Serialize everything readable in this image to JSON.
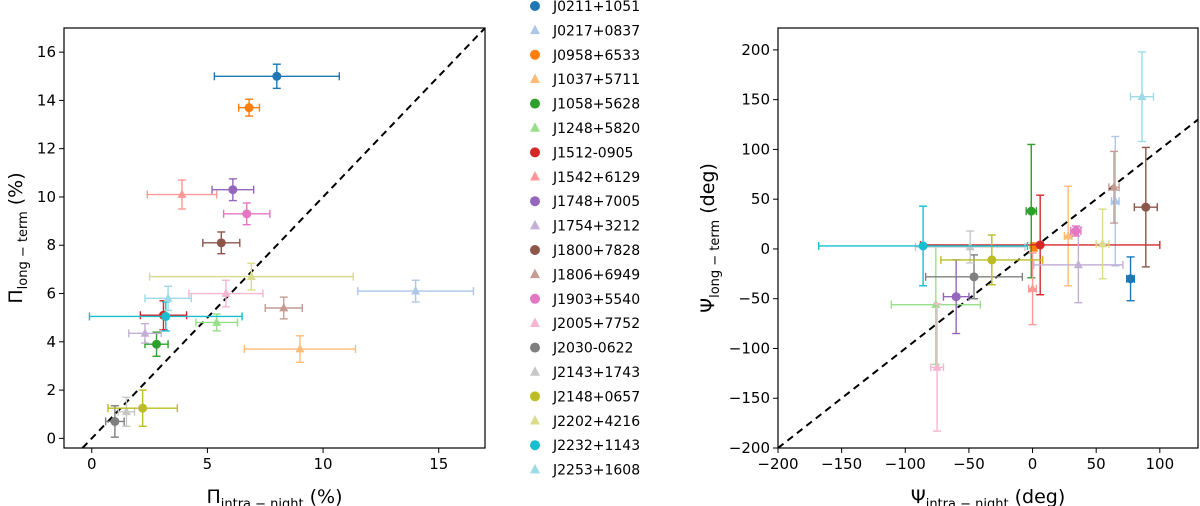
{
  "chart_data": [
    {
      "type": "scatter",
      "title": "",
      "xlabel": "Π",
      "xlabel_sub": "intra − night",
      "xlabel_unit": " (%)",
      "ylabel": "Π",
      "ylabel_sub": "long − term",
      "ylabel_unit": " (%)",
      "xlim": [
        -1.2,
        17
      ],
      "ylim": [
        -0.4,
        17
      ],
      "xticks": [
        0,
        5,
        10,
        15
      ],
      "yticks": [
        0,
        2,
        4,
        6,
        8,
        10,
        12,
        14,
        16
      ],
      "grid": false,
      "reference_line": "y = x",
      "points": [
        {
          "source": "J0211+1051",
          "x": 8.0,
          "xerr": 2.7,
          "y": 15.0,
          "yerr": 0.5
        },
        {
          "source": "J0217+0837",
          "x": 14.0,
          "xerr": 2.5,
          "y": 6.1,
          "yerr": 0.45
        },
        {
          "source": "J0958+6533",
          "x": 6.8,
          "xerr": 0.45,
          "y": 13.7,
          "yerr": 0.35
        },
        {
          "source": "J1037+5711",
          "x": 9.0,
          "xerr": 2.4,
          "y": 3.7,
          "yerr": 0.55
        },
        {
          "source": "J1058+5628",
          "x": 2.8,
          "xerr": 0.5,
          "y": 3.9,
          "yerr": 0.5
        },
        {
          "source": "J1248+5820",
          "x": 5.4,
          "xerr": 0.9,
          "y": 4.8,
          "yerr": 0.35
        },
        {
          "source": "J1512-0905",
          "x": 3.1,
          "xerr": 1.0,
          "y": 5.1,
          "yerr": 0.6
        },
        {
          "source": "J1542+6129",
          "x": 3.9,
          "xerr": 1.5,
          "y": 10.1,
          "yerr": 0.6
        },
        {
          "source": "J1748+7005",
          "x": 6.1,
          "xerr": 0.9,
          "y": 10.3,
          "yerr": 0.45
        },
        {
          "source": "J1754+3212",
          "x": 2.3,
          "xerr": 0.7,
          "y": 4.35,
          "yerr": 0.4
        },
        {
          "source": "J1800+7828",
          "x": 5.6,
          "xerr": 0.8,
          "y": 8.1,
          "yerr": 0.45
        },
        {
          "source": "J1806+6949",
          "x": 8.3,
          "xerr": 0.8,
          "y": 5.4,
          "yerr": 0.45
        },
        {
          "source": "J1903+5540",
          "x": 6.7,
          "xerr": 1.0,
          "y": 9.3,
          "yerr": 0.45
        },
        {
          "source": "J2005+7752",
          "x": 5.8,
          "xerr": 1.6,
          "y": 6.0,
          "yerr": 0.55
        },
        {
          "source": "J2030-0622",
          "x": 1.0,
          "xerr": 0.4,
          "y": 0.7,
          "yerr": 0.65
        },
        {
          "source": "J2143+1743",
          "x": 1.5,
          "xerr": 0.35,
          "y": 1.1,
          "yerr": 0.6
        },
        {
          "source": "J2148+0657",
          "x": 2.2,
          "xerr": 1.5,
          "y": 1.25,
          "yerr": 0.75
        },
        {
          "source": "J2202+4216",
          "x": 6.9,
          "xerr": 4.4,
          "y": 6.7,
          "yerr": 0.55
        },
        {
          "source": "J2232+1143",
          "x": 3.2,
          "xerr": 3.3,
          "y": 5.05,
          "yerr": 0.6
        },
        {
          "source": "J2253+1608",
          "x": 3.3,
          "xerr": 1.0,
          "y": 5.8,
          "yerr": 0.5
        }
      ]
    },
    {
      "type": "scatter",
      "title": "",
      "xlabel": "Ψ",
      "xlabel_sub": "intra − night",
      "xlabel_unit": " (deg)",
      "ylabel": "Ψ",
      "ylabel_sub": "long − term",
      "ylabel_unit": " (deg)",
      "xlim": [
        -200,
        130
      ],
      "ylim": [
        -200,
        222
      ],
      "xticks": [
        -200,
        -150,
        -100,
        -50,
        0,
        50,
        100
      ],
      "yticks": [
        -200,
        -150,
        -100,
        -50,
        0,
        50,
        100,
        150,
        200
      ],
      "grid": false,
      "reference_line": "y = x",
      "points": [
        {
          "source": "J0211+1051",
          "x": 77,
          "xerr": 3,
          "y": -30,
          "yerr": 22
        },
        {
          "source": "J0217+0837",
          "x": 65,
          "xerr": 3,
          "y": 48,
          "yerr": 65
        },
        {
          "source": "J0958+6533",
          "x": 1,
          "xerr": 2,
          "y": 2,
          "yerr": 4
        },
        {
          "source": "J1037+5711",
          "x": 28,
          "xerr": 3,
          "y": 13,
          "yerr": 50
        },
        {
          "source": "J1058+5628",
          "x": -1,
          "xerr": 4,
          "y": 38,
          "yerr": 67
        },
        {
          "source": "J1248+5820",
          "x": -76,
          "xerr": 35,
          "y": -56,
          "yerr": 60
        },
        {
          "source": "J1512-0905",
          "x": 6,
          "xerr": 94,
          "y": 4,
          "yerr": 50
        },
        {
          "source": "J1542+6129",
          "x": 0,
          "xerr": 3,
          "y": -40,
          "yerr": 36
        },
        {
          "source": "J1748+7005",
          "x": -60,
          "xerr": 10,
          "y": -48,
          "yerr": 37
        },
        {
          "source": "J1754+3212",
          "x": 36,
          "xerr": 35,
          "y": -16,
          "yerr": 38
        },
        {
          "source": "J1800+7828",
          "x": 89,
          "xerr": 9,
          "y": 42,
          "yerr": 60
        },
        {
          "source": "J1806+6949",
          "x": 64,
          "xerr": 4,
          "y": 62,
          "yerr": 36
        },
        {
          "source": "J1903+5540",
          "x": 34,
          "xerr": 4,
          "y": 18,
          "yerr": 5
        },
        {
          "source": "J2005+7752",
          "x": -75,
          "xerr": 5,
          "y": -119,
          "yerr": 64
        },
        {
          "source": "J2030-0622",
          "x": -46,
          "xerr": 38,
          "y": -28,
          "yerr": 22
        },
        {
          "source": "J2143+1743",
          "x": -49,
          "xerr": 43,
          "y": 2,
          "yerr": 16
        },
        {
          "source": "J2148+0657",
          "x": -32,
          "xerr": 40,
          "y": -11,
          "yerr": 25
        },
        {
          "source": "J2202+4216",
          "x": 55,
          "xerr": 5,
          "y": 5,
          "yerr": 35
        },
        {
          "source": "J2232+1143",
          "x": -86,
          "xerr": 82,
          "y": 3,
          "yerr": 40
        },
        {
          "source": "J2253+1608",
          "x": 86,
          "xerr": 9,
          "y": 153,
          "yerr": 45
        }
      ]
    }
  ],
  "legend": {
    "placement": "center",
    "entries": [
      {
        "label": "J0211+1051",
        "marker": "circle",
        "color": "#1f77b4"
      },
      {
        "label": "J0217+0837",
        "marker": "triangle",
        "color": "#aec7e8"
      },
      {
        "label": "J0958+6533",
        "marker": "circle",
        "color": "#ff7f0e"
      },
      {
        "label": "J1037+5711",
        "marker": "triangle",
        "color": "#ffbb78"
      },
      {
        "label": "J1058+5628",
        "marker": "circle",
        "color": "#2ca02c"
      },
      {
        "label": "J1248+5820",
        "marker": "triangle",
        "color": "#98df8a"
      },
      {
        "label": "J1512-0905",
        "marker": "circle",
        "color": "#d62728"
      },
      {
        "label": "J1542+6129",
        "marker": "triangle",
        "color": "#ff9896"
      },
      {
        "label": "J1748+7005",
        "marker": "circle",
        "color": "#9467bd"
      },
      {
        "label": "J1754+3212",
        "marker": "triangle",
        "color": "#c5b0d5"
      },
      {
        "label": "J1800+7828",
        "marker": "circle",
        "color": "#8c564b"
      },
      {
        "label": "J1806+6949",
        "marker": "triangle",
        "color": "#c49c94"
      },
      {
        "label": "J1903+5540",
        "marker": "circle",
        "color": "#e377c2"
      },
      {
        "label": "J2005+7752",
        "marker": "triangle",
        "color": "#f7b6d2"
      },
      {
        "label": "J2030-0622",
        "marker": "circle",
        "color": "#7f7f7f"
      },
      {
        "label": "J2143+1743",
        "marker": "triangle",
        "color": "#c7c7c7"
      },
      {
        "label": "J2148+0657",
        "marker": "circle",
        "color": "#bcbd22"
      },
      {
        "label": "J2202+4216",
        "marker": "triangle",
        "color": "#dbdb8d"
      },
      {
        "label": "J2232+1143",
        "marker": "circle",
        "color": "#17becf"
      },
      {
        "label": "J2253+1608",
        "marker": "triangle",
        "color": "#9edae5"
      }
    ]
  }
}
